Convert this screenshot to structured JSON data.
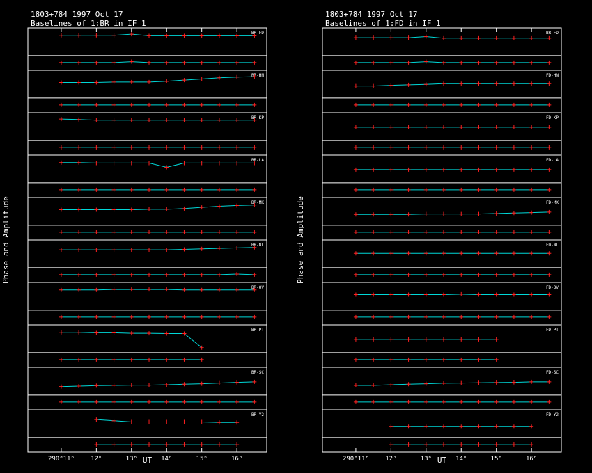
{
  "chart_data": [
    {
      "type": "scatter",
      "title": "1803+784  1997 Oct 17",
      "subtitle": "Baselines of 1:BR in IF 1",
      "xlabel": "UT",
      "ylabel": "Phase and Amplitude",
      "point_color": "#ff2020",
      "model_color": "#00d8d8",
      "xlim": [
        10.05,
        16.85
      ],
      "xticks": [
        {
          "value": 11,
          "label": "290ᵈ11ʰ"
        },
        {
          "value": 12,
          "label": "12ʰ"
        },
        {
          "value": 13,
          "label": "13ʰ"
        },
        {
          "value": 14,
          "label": "14ʰ"
        },
        {
          "value": 15,
          "label": "15ʰ"
        },
        {
          "value": 16,
          "label": "16ʰ"
        }
      ],
      "amp_ylim": [
        0,
        1
      ],
      "phase_ylim": [
        -180,
        180
      ],
      "x": [
        11.0,
        11.5,
        12.0,
        12.5,
        13.0,
        13.5,
        14.0,
        14.5,
        15.0,
        15.5,
        16.0,
        16.5
      ],
      "panels": [
        {
          "name": "BR-FD",
          "amp": [
            0.8,
            0.8,
            0.8,
            0.8,
            0.85,
            0.78,
            0.78,
            0.78,
            0.78,
            0.78,
            0.78,
            0.78
          ],
          "phase": [
            0,
            0,
            0,
            0,
            30,
            0,
            0,
            0,
            0,
            0,
            0,
            0
          ]
        },
        {
          "name": "BR-HN",
          "amp": [
            0.6,
            0.6,
            0.6,
            0.62,
            0.62,
            0.62,
            0.65,
            0.7,
            0.75,
            0.8,
            0.83,
            0.85
          ],
          "phase": [
            0,
            0,
            0,
            0,
            0,
            0,
            0,
            0,
            0,
            0,
            0,
            0
          ]
        },
        {
          "name": "BR-KP",
          "amp": [
            0.85,
            0.83,
            0.8,
            0.8,
            0.8,
            0.8,
            0.8,
            0.8,
            0.8,
            0.8,
            0.8,
            0.8
          ],
          "phase": [
            0,
            0,
            0,
            0,
            0,
            0,
            0,
            0,
            0,
            0,
            0,
            0
          ]
        },
        {
          "name": "BR-LA",
          "amp": [
            0.8,
            0.8,
            0.78,
            0.78,
            0.78,
            0.78,
            0.6,
            0.78,
            0.78,
            0.78,
            0.78,
            0.78
          ],
          "phase": [
            0,
            0,
            0,
            0,
            0,
            0,
            0,
            0,
            0,
            0,
            0,
            0
          ]
        },
        {
          "name": "BR-MK",
          "amp": [
            0.6,
            0.6,
            0.6,
            0.6,
            0.6,
            0.62,
            0.62,
            0.65,
            0.7,
            0.75,
            0.78,
            0.8
          ],
          "phase": [
            0,
            0,
            0,
            0,
            0,
            0,
            0,
            0,
            0,
            0,
            0,
            0
          ]
        },
        {
          "name": "BR-NL",
          "amp": [
            0.7,
            0.7,
            0.7,
            0.7,
            0.7,
            0.7,
            0.7,
            0.72,
            0.74,
            0.76,
            0.78,
            0.8
          ],
          "phase": [
            0,
            0,
            0,
            0,
            0,
            0,
            0,
            0,
            0,
            0,
            20,
            0
          ]
        },
        {
          "name": "BR-OV",
          "amp": [
            0.8,
            0.8,
            0.8,
            0.82,
            0.82,
            0.82,
            0.82,
            0.8,
            0.8,
            0.8,
            0.8,
            0.8
          ],
          "phase": [
            0,
            0,
            0,
            0,
            0,
            0,
            0,
            0,
            0,
            0,
            0,
            0
          ]
        },
        {
          "name": "BR-PT",
          "amp": [
            0.8,
            0.8,
            0.78,
            0.78,
            0.76,
            0.76,
            0.75,
            0.75,
            0.15,
            null,
            null,
            null
          ],
          "phase": [
            0,
            0,
            0,
            0,
            0,
            0,
            0,
            0,
            0,
            null,
            null,
            null
          ]
        },
        {
          "name": "BR-SC",
          "amp": [
            0.3,
            0.32,
            0.34,
            0.35,
            0.36,
            0.36,
            0.38,
            0.4,
            0.42,
            0.45,
            0.48,
            0.5
          ],
          "phase": [
            0,
            0,
            0,
            0,
            0,
            0,
            0,
            0,
            0,
            0,
            0,
            0
          ]
        },
        {
          "name": "BR-Y2",
          "amp": [
            null,
            null,
            0.7,
            0.65,
            0.6,
            0.6,
            0.6,
            0.6,
            0.6,
            0.58,
            0.58,
            null
          ],
          "phase": [
            null,
            null,
            0,
            0,
            0,
            0,
            0,
            0,
            0,
            0,
            0,
            null
          ]
        }
      ]
    },
    {
      "type": "scatter",
      "title": "1803+784  1997 Oct 17",
      "subtitle": "Baselines of 1:FD in IF 1",
      "xlabel": "UT",
      "ylabel": "Phase and Amplitude",
      "point_color": "#ff2020",
      "model_color": "#00d8d8",
      "xlim": [
        10.05,
        16.85
      ],
      "xticks": [
        {
          "value": 11,
          "label": "290ᵈ11ʰ"
        },
        {
          "value": 12,
          "label": "12ʰ"
        },
        {
          "value": 13,
          "label": "13ʰ"
        },
        {
          "value": 14,
          "label": "14ʰ"
        },
        {
          "value": 15,
          "label": "15ʰ"
        },
        {
          "value": 16,
          "label": "16ʰ"
        }
      ],
      "amp_ylim": [
        0,
        1
      ],
      "phase_ylim": [
        -180,
        180
      ],
      "x": [
        11.0,
        11.5,
        12.0,
        12.5,
        13.0,
        13.5,
        14.0,
        14.5,
        15.0,
        15.5,
        16.0,
        16.5
      ],
      "panels": [
        {
          "name": "BR-FD",
          "amp": [
            0.7,
            0.7,
            0.7,
            0.7,
            0.75,
            0.68,
            0.68,
            0.68,
            0.68,
            0.68,
            0.68,
            0.68
          ],
          "phase": [
            0,
            0,
            0,
            0,
            30,
            0,
            0,
            0,
            0,
            0,
            0,
            0
          ]
        },
        {
          "name": "FD-HN",
          "amp": [
            0.45,
            0.45,
            0.48,
            0.5,
            0.52,
            0.55,
            0.55,
            0.55,
            0.55,
            0.55,
            0.55,
            0.55
          ],
          "phase": [
            0,
            0,
            0,
            0,
            0,
            0,
            0,
            0,
            0,
            0,
            0,
            0
          ]
        },
        {
          "name": "FD-KP",
          "amp": [
            0.5,
            0.5,
            0.5,
            0.5,
            0.5,
            0.5,
            0.5,
            0.5,
            0.5,
            0.5,
            0.5,
            0.5
          ],
          "phase": [
            0,
            0,
            0,
            0,
            0,
            0,
            0,
            0,
            0,
            0,
            0,
            0
          ]
        },
        {
          "name": "FD-LA",
          "amp": [
            0.5,
            0.5,
            0.5,
            0.5,
            0.5,
            0.5,
            0.5,
            0.5,
            0.5,
            0.5,
            0.5,
            0.5
          ],
          "phase": [
            0,
            0,
            0,
            0,
            0,
            0,
            0,
            0,
            0,
            0,
            0,
            0
          ]
        },
        {
          "name": "FD-MK",
          "amp": [
            0.4,
            0.4,
            0.4,
            0.4,
            0.42,
            0.42,
            0.42,
            0.42,
            0.44,
            0.46,
            0.48,
            0.5
          ],
          "phase": [
            0,
            0,
            0,
            0,
            0,
            0,
            0,
            0,
            0,
            0,
            0,
            0
          ]
        },
        {
          "name": "FD-NL",
          "amp": [
            0.55,
            0.55,
            0.55,
            0.55,
            0.55,
            0.55,
            0.55,
            0.55,
            0.55,
            0.55,
            0.55,
            0.55
          ],
          "phase": [
            0,
            0,
            0,
            0,
            0,
            0,
            0,
            0,
            0,
            0,
            0,
            0
          ]
        },
        {
          "name": "FD-OV",
          "amp": [
            0.6,
            0.6,
            0.6,
            0.6,
            0.6,
            0.6,
            0.62,
            0.6,
            0.6,
            0.6,
            0.6,
            0.6
          ],
          "phase": [
            0,
            0,
            0,
            0,
            0,
            0,
            0,
            0,
            0,
            0,
            0,
            0
          ]
        },
        {
          "name": "FD-PT",
          "amp": [
            0.5,
            0.5,
            0.5,
            0.5,
            0.5,
            0.5,
            0.5,
            0.5,
            0.5,
            null,
            null,
            null
          ],
          "phase": [
            0,
            0,
            0,
            0,
            0,
            0,
            0,
            0,
            0,
            null,
            null,
            null
          ]
        },
        {
          "name": "FD-SC",
          "amp": [
            0.35,
            0.35,
            0.38,
            0.4,
            0.42,
            0.44,
            0.45,
            0.46,
            0.47,
            0.48,
            0.5,
            0.5
          ],
          "phase": [
            0,
            0,
            0,
            0,
            0,
            0,
            0,
            0,
            0,
            0,
            0,
            0
          ]
        },
        {
          "name": "FD-Y2",
          "amp": [
            null,
            null,
            0.4,
            0.4,
            0.4,
            0.4,
            0.4,
            0.4,
            0.4,
            0.4,
            0.4,
            null
          ],
          "phase": [
            null,
            null,
            0,
            0,
            0,
            0,
            0,
            0,
            0,
            0,
            0,
            null
          ]
        }
      ]
    }
  ]
}
